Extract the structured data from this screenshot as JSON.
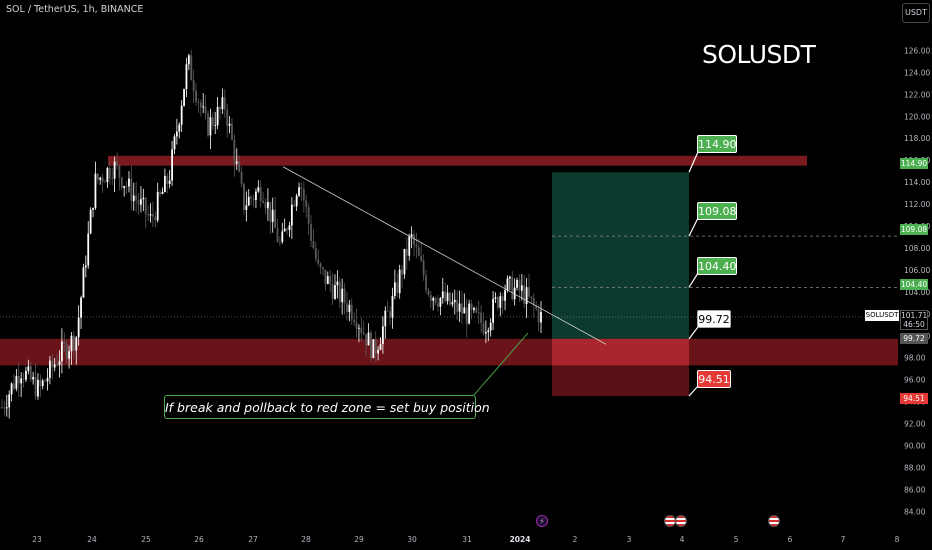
{
  "header": {
    "symbol_info": "SOL / TetherUS, 1h, BINANCE",
    "currency_button": "USDT",
    "watermark_title": "SOLUSDT"
  },
  "annotation": {
    "text": "If break and pollback to red zone = set buy position"
  },
  "price_tags": {
    "target_3": "114.90",
    "target_2": "109.08",
    "target_1": "104.40",
    "entry": "99.72",
    "stop": "94.51"
  },
  "axis_badges": {
    "target_3": "114.90",
    "target_2": "109.08",
    "target_1": "104.40",
    "entry": "99.72",
    "stop": "94.51",
    "symbol": "SOLUSDT",
    "last_price": "101.71",
    "countdown": "46:50"
  },
  "colors": {
    "background": "#000000",
    "bull_candle": "#ffffff",
    "bear_candle": "#5a5a5a",
    "resistance_zone": "#7a1a1e",
    "support_zone": "#6a141a",
    "target_box": "#0c3a2e",
    "stop_box": "#5a1116",
    "accent_green": "#4caf50",
    "accent_red": "#e53935",
    "event_purple": "#9c27b0"
  },
  "events": [
    {
      "name": "lightning-event",
      "glyph": "⚡"
    },
    {
      "name": "us-flag-event",
      "glyph": ""
    },
    {
      "name": "us-flag-event",
      "glyph": ""
    }
  ],
  "chart_data": {
    "type": "candlestick",
    "timeframe": "1h",
    "y_ticks": [
      84,
      86,
      88,
      90,
      92,
      94,
      96,
      98,
      100,
      102,
      104,
      106,
      108,
      110,
      112,
      114,
      116,
      118,
      120,
      122,
      124,
      126
    ],
    "ylim": [
      83.3,
      127.5
    ],
    "x_ticks": [
      "23",
      "24",
      "25",
      "26",
      "27",
      "28",
      "29",
      "30",
      "31",
      "2024",
      "2",
      "3",
      "4",
      "5",
      "6",
      "7",
      "8"
    ],
    "candle_anchors": [
      {
        "x": "23",
        "close": 93.5
      },
      {
        "x": "23",
        "close": 97.0
      },
      {
        "x": "23",
        "close": 95.0
      },
      {
        "x": "24",
        "close": 98.0
      },
      {
        "x": "24",
        "close": 100.0
      },
      {
        "x": "24",
        "close": 114.0
      },
      {
        "x": "24",
        "close": 115.5
      },
      {
        "x": "25",
        "close": 113.0
      },
      {
        "x": "25",
        "close": 110.5
      },
      {
        "x": "25",
        "close": 114.5
      },
      {
        "x": "26",
        "close": 125.0
      },
      {
        "x": "26",
        "close": 119.0
      },
      {
        "x": "26",
        "close": 121.0
      },
      {
        "x": "26",
        "close": 112.0
      },
      {
        "x": "27",
        "close": 113.5
      },
      {
        "x": "27",
        "close": 108.0
      },
      {
        "x": "27",
        "close": 114.5
      },
      {
        "x": "28",
        "close": 106.0
      },
      {
        "x": "28",
        "close": 104.0
      },
      {
        "x": "28",
        "close": 102.0
      },
      {
        "x": "29",
        "close": 98.5
      },
      {
        "x": "29",
        "close": 103.0
      },
      {
        "x": "29",
        "close": 109.0
      },
      {
        "x": "30",
        "close": 104.0
      },
      {
        "x": "30",
        "close": 103.0
      },
      {
        "x": "30",
        "close": 102.0
      },
      {
        "x": "31",
        "close": 101.0
      },
      {
        "x": "31",
        "close": 104.5
      },
      {
        "x": "2024",
        "close": 104.0
      },
      {
        "x": "2024",
        "close": 101.71
      }
    ],
    "last_price": 101.71,
    "resistance_zone": [
      115.5,
      116.4
    ],
    "support_zone": [
      97.3,
      99.72
    ],
    "trendline": {
      "from": {
        "x": "27",
        "y": 115.4
      },
      "to": {
        "x": "2024",
        "y": 99.5
      }
    },
    "long_position": {
      "entry": 99.72,
      "targets": [
        104.4,
        109.08,
        114.9
      ],
      "stop": 94.51
    },
    "title": "SOLUSDT"
  }
}
